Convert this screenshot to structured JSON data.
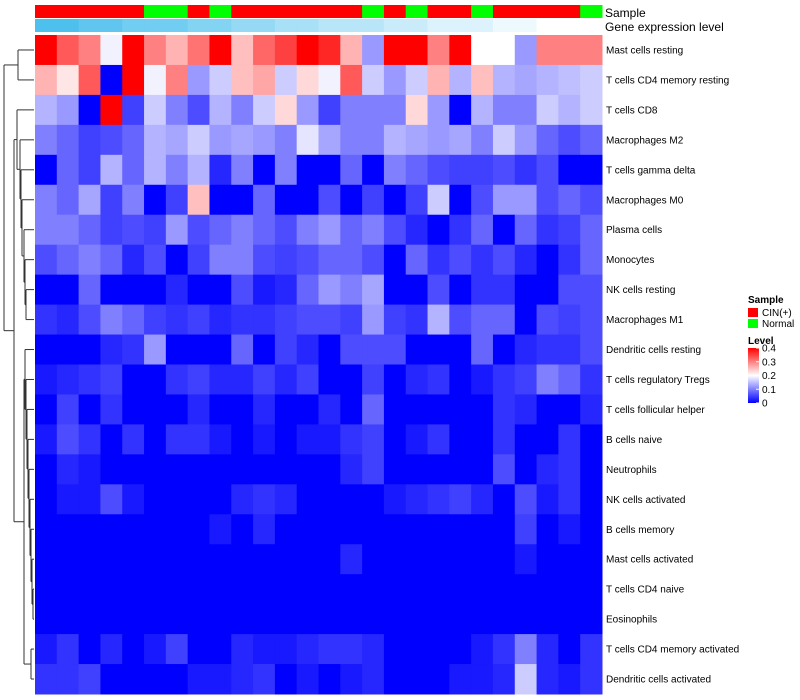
{
  "chart_data": {
    "type": "heatmap",
    "title": "",
    "annotations": {
      "sample_label": "Sample",
      "expression_label": "Gene expression level"
    },
    "samples": [
      "CIN(+)",
      "CIN(+)",
      "CIN(+)",
      "CIN(+)",
      "CIN(+)",
      "Normal",
      "Normal",
      "CIN(+)",
      "Normal",
      "CIN(+)",
      "CIN(+)",
      "CIN(+)",
      "CIN(+)",
      "CIN(+)",
      "CIN(+)",
      "Normal",
      "CIN(+)",
      "Normal",
      "CIN(+)",
      "CIN(+)",
      "Normal",
      "CIN(+)",
      "CIN(+)",
      "CIN(+)",
      "CIN(+)",
      "Normal"
    ],
    "rows": [
      "Mast cells resting",
      "T cells CD4 memory resting",
      "T cells CD8",
      "Macrophages M2",
      "T cells gamma delta",
      "Macrophages M0",
      "Plasma cells",
      "Monocytes",
      "NK cells resting",
      "Macrophages M1",
      "Dendritic cells resting",
      "T cells regulatory  Tregs",
      "T cells follicular helper",
      "B cells naive",
      "Neutrophils",
      "NK cells activated",
      "B cells memory",
      "Mast cells activated",
      "T cells CD4 naive",
      "Eosinophils",
      "T cells CD4 memory activated",
      "Dendritic cells activated"
    ],
    "values": [
      [
        0.4,
        0.33,
        0.3,
        0.19,
        0.4,
        0.3,
        0.26,
        0.31,
        0.4,
        0.25,
        0.32,
        0.35,
        0.4,
        0.37,
        0.26,
        0.12,
        0.4,
        0.4,
        0.3,
        0.4,
        0.2,
        0.2,
        0.12,
        0.3,
        0.3,
        0.3
      ],
      [
        0.26,
        0.22,
        0.33,
        0.0,
        0.4,
        0.19,
        0.3,
        0.12,
        0.16,
        0.25,
        0.27,
        0.16,
        0.23,
        0.19,
        0.33,
        0.16,
        0.12,
        0.16,
        0.26,
        0.14,
        0.25,
        0.14,
        0.13,
        0.14,
        0.15,
        0.16
      ],
      [
        0.14,
        0.12,
        0.0,
        0.4,
        0.05,
        0.16,
        0.1,
        0.06,
        0.14,
        0.1,
        0.16,
        0.23,
        0.12,
        0.05,
        0.1,
        0.1,
        0.1,
        0.23,
        0.12,
        0.0,
        0.14,
        0.1,
        0.1,
        0.16,
        0.14,
        0.16
      ],
      [
        0.1,
        0.08,
        0.05,
        0.06,
        0.08,
        0.14,
        0.13,
        0.16,
        0.12,
        0.13,
        0.12,
        0.1,
        0.18,
        0.13,
        0.1,
        0.1,
        0.14,
        0.13,
        0.12,
        0.13,
        0.1,
        0.16,
        0.12,
        0.08,
        0.06,
        0.08
      ],
      [
        0.0,
        0.08,
        0.05,
        0.14,
        0.08,
        0.14,
        0.1,
        0.14,
        0.03,
        0.1,
        0.0,
        0.1,
        0.0,
        0.0,
        0.08,
        0.0,
        0.1,
        0.08,
        0.06,
        0.05,
        0.05,
        0.06,
        0.04,
        0.06,
        0.0,
        0.0
      ],
      [
        0.1,
        0.08,
        0.13,
        0.05,
        0.1,
        0.0,
        0.05,
        0.25,
        0.0,
        0.0,
        0.08,
        0.0,
        0.0,
        0.06,
        0.0,
        0.05,
        0.0,
        0.05,
        0.16,
        0.0,
        0.06,
        0.12,
        0.12,
        0.06,
        0.08,
        0.06
      ],
      [
        0.1,
        0.1,
        0.08,
        0.05,
        0.06,
        0.05,
        0.12,
        0.06,
        0.08,
        0.1,
        0.08,
        0.06,
        0.1,
        0.12,
        0.08,
        0.1,
        0.06,
        0.03,
        0.0,
        0.04,
        0.08,
        0.0,
        0.08,
        0.04,
        0.05,
        0.08
      ],
      [
        0.06,
        0.08,
        0.1,
        0.08,
        0.03,
        0.06,
        0.0,
        0.05,
        0.1,
        0.1,
        0.06,
        0.05,
        0.06,
        0.08,
        0.08,
        0.06,
        0.0,
        0.08,
        0.04,
        0.06,
        0.04,
        0.06,
        0.03,
        0.0,
        0.04,
        0.08
      ],
      [
        0.0,
        0.0,
        0.08,
        0.0,
        0.0,
        0.0,
        0.03,
        0.0,
        0.0,
        0.06,
        0.02,
        0.03,
        0.08,
        0.12,
        0.1,
        0.13,
        0.0,
        0.0,
        0.06,
        0.0,
        0.04,
        0.04,
        0.0,
        0.0,
        0.06,
        0.06
      ],
      [
        0.04,
        0.03,
        0.06,
        0.1,
        0.08,
        0.05,
        0.04,
        0.05,
        0.03,
        0.04,
        0.04,
        0.05,
        0.06,
        0.06,
        0.05,
        0.12,
        0.05,
        0.04,
        0.14,
        0.06,
        0.08,
        0.08,
        0.0,
        0.06,
        0.05,
        0.06
      ],
      [
        0.0,
        0.0,
        0.0,
        0.03,
        0.04,
        0.12,
        0.0,
        0.0,
        0.0,
        0.08,
        0.0,
        0.05,
        0.03,
        0.0,
        0.06,
        0.06,
        0.06,
        0.0,
        0.0,
        0.0,
        0.08,
        0.0,
        0.03,
        0.04,
        0.04,
        0.06
      ],
      [
        0.02,
        0.03,
        0.04,
        0.05,
        0.0,
        0.0,
        0.04,
        0.05,
        0.03,
        0.03,
        0.05,
        0.03,
        0.05,
        0.0,
        0.0,
        0.05,
        0.0,
        0.03,
        0.04,
        0.0,
        0.02,
        0.04,
        0.05,
        0.1,
        0.08,
        0.04
      ],
      [
        0.0,
        0.05,
        0.0,
        0.04,
        0.0,
        0.0,
        0.0,
        0.03,
        0.0,
        0.0,
        0.03,
        0.0,
        0.0,
        0.03,
        0.0,
        0.08,
        0.0,
        0.0,
        0.0,
        0.0,
        0.0,
        0.04,
        0.03,
        0.0,
        0.0,
        0.03
      ],
      [
        0.02,
        0.06,
        0.04,
        0.0,
        0.04,
        0.0,
        0.04,
        0.04,
        0.02,
        0.0,
        0.02,
        0.0,
        0.02,
        0.02,
        0.04,
        0.05,
        0.0,
        0.02,
        0.04,
        0.0,
        0.0,
        0.04,
        0.0,
        0.0,
        0.04,
        0.0
      ],
      [
        0.0,
        0.03,
        0.02,
        0.0,
        0.0,
        0.0,
        0.0,
        0.0,
        0.0,
        0.0,
        0.0,
        0.0,
        0.0,
        0.0,
        0.03,
        0.05,
        0.0,
        0.0,
        0.0,
        0.0,
        0.0,
        0.06,
        0.0,
        0.03,
        0.04,
        0.0
      ],
      [
        0.0,
        0.02,
        0.02,
        0.06,
        0.02,
        0.0,
        0.0,
        0.0,
        0.0,
        0.03,
        0.04,
        0.03,
        0.0,
        0.0,
        0.0,
        0.0,
        0.02,
        0.03,
        0.04,
        0.05,
        0.03,
        0.0,
        0.06,
        0.02,
        0.04,
        0.0
      ],
      [
        0.0,
        0.0,
        0.0,
        0.0,
        0.0,
        0.0,
        0.0,
        0.0,
        0.02,
        0.0,
        0.03,
        0.0,
        0.0,
        0.0,
        0.0,
        0.0,
        0.0,
        0.0,
        0.0,
        0.0,
        0.0,
        0.0,
        0.05,
        0.0,
        0.02,
        0.0
      ],
      [
        0.0,
        0.0,
        0.0,
        0.0,
        0.0,
        0.0,
        0.0,
        0.0,
        0.0,
        0.0,
        0.0,
        0.0,
        0.0,
        0.0,
        0.03,
        0.0,
        0.0,
        0.0,
        0.0,
        0.0,
        0.0,
        0.0,
        0.02,
        0.0,
        0.0,
        0.0
      ],
      [
        0.0,
        0.0,
        0.0,
        0.0,
        0.0,
        0.0,
        0.0,
        0.0,
        0.0,
        0.0,
        0.0,
        0.0,
        0.0,
        0.0,
        0.0,
        0.0,
        0.0,
        0.0,
        0.0,
        0.0,
        0.0,
        0.0,
        0.0,
        0.0,
        0.0,
        0.0
      ],
      [
        0.0,
        0.0,
        0.0,
        0.0,
        0.0,
        0.0,
        0.0,
        0.0,
        0.0,
        0.0,
        0.0,
        0.0,
        0.0,
        0.0,
        0.0,
        0.0,
        0.0,
        0.0,
        0.0,
        0.0,
        0.0,
        0.0,
        0.0,
        0.0,
        0.0,
        0.0
      ],
      [
        0.02,
        0.04,
        0.0,
        0.03,
        0.0,
        0.02,
        0.05,
        0.0,
        0.0,
        0.03,
        0.02,
        0.02,
        0.03,
        0.04,
        0.04,
        0.03,
        0.0,
        0.0,
        0.0,
        0.0,
        0.02,
        0.04,
        0.1,
        0.03,
        0.0,
        0.04
      ],
      [
        0.04,
        0.04,
        0.05,
        0.0,
        0.0,
        0.0,
        0.0,
        0.02,
        0.02,
        0.03,
        0.04,
        0.0,
        0.02,
        0.0,
        0.02,
        0.03,
        0.0,
        0.0,
        0.0,
        0.02,
        0.02,
        0.03,
        0.16,
        0.03,
        0.02,
        0.04
      ]
    ],
    "expression_levels": [
      0.18,
      0.18,
      0.17,
      0.17,
      0.16,
      0.16,
      0.16,
      0.15,
      0.15,
      0.14,
      0.14,
      0.13,
      0.13,
      0.12,
      0.12,
      0.12,
      0.11,
      0.11,
      0.1,
      0.1,
      0.1,
      0.09,
      0.09,
      0.08,
      0.08,
      0.08
    ],
    "legend": {
      "sample_title": "Sample",
      "sample_entries": [
        {
          "label": "CIN(+)",
          "color": "#ff0000"
        },
        {
          "label": "Normal",
          "color": "#00ff00"
        }
      ],
      "level_title": "Level",
      "level_ticks": [
        0.4,
        0.3,
        0.2,
        0.1,
        0
      ],
      "level_tick_labels": [
        "0.4",
        "0.3",
        "0.2",
        "0.1",
        "0"
      ],
      "range": [
        0,
        0.4
      ]
    },
    "colors": {
      "low": "#0000ff",
      "mid": "#ffffff",
      "high": "#ff0000",
      "expr_low": "#ffffff",
      "expr_high": "#4ec0ee"
    }
  }
}
